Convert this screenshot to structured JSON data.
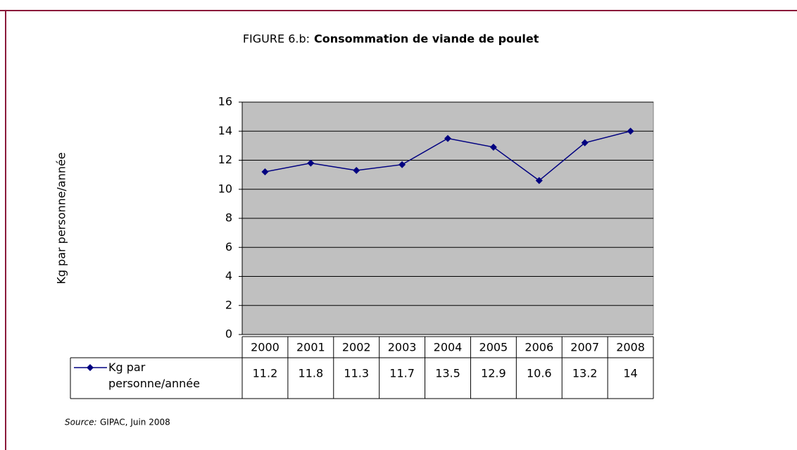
{
  "chart_data": {
    "type": "line",
    "figure_label": "FIGURE 6.b:",
    "title": "Consommation de viande de poulet",
    "y_label": "Kg par personne/année",
    "categories": [
      "2000",
      "2001",
      "2002",
      "2003",
      "2004",
      "2005",
      "2006",
      "2007",
      "2008"
    ],
    "series": [
      {
        "name": "Kg par personne/année",
        "color": "#000080",
        "values": [
          11.2,
          11.8,
          11.3,
          11.7,
          13.5,
          12.9,
          10.6,
          13.2,
          14
        ]
      }
    ],
    "ylim": [
      0,
      16
    ],
    "yticks": [
      0,
      2,
      4,
      6,
      8,
      10,
      12,
      14,
      16
    ],
    "grid": true,
    "source_label": "Source:",
    "source": "GIPAC, Juin 2008"
  }
}
